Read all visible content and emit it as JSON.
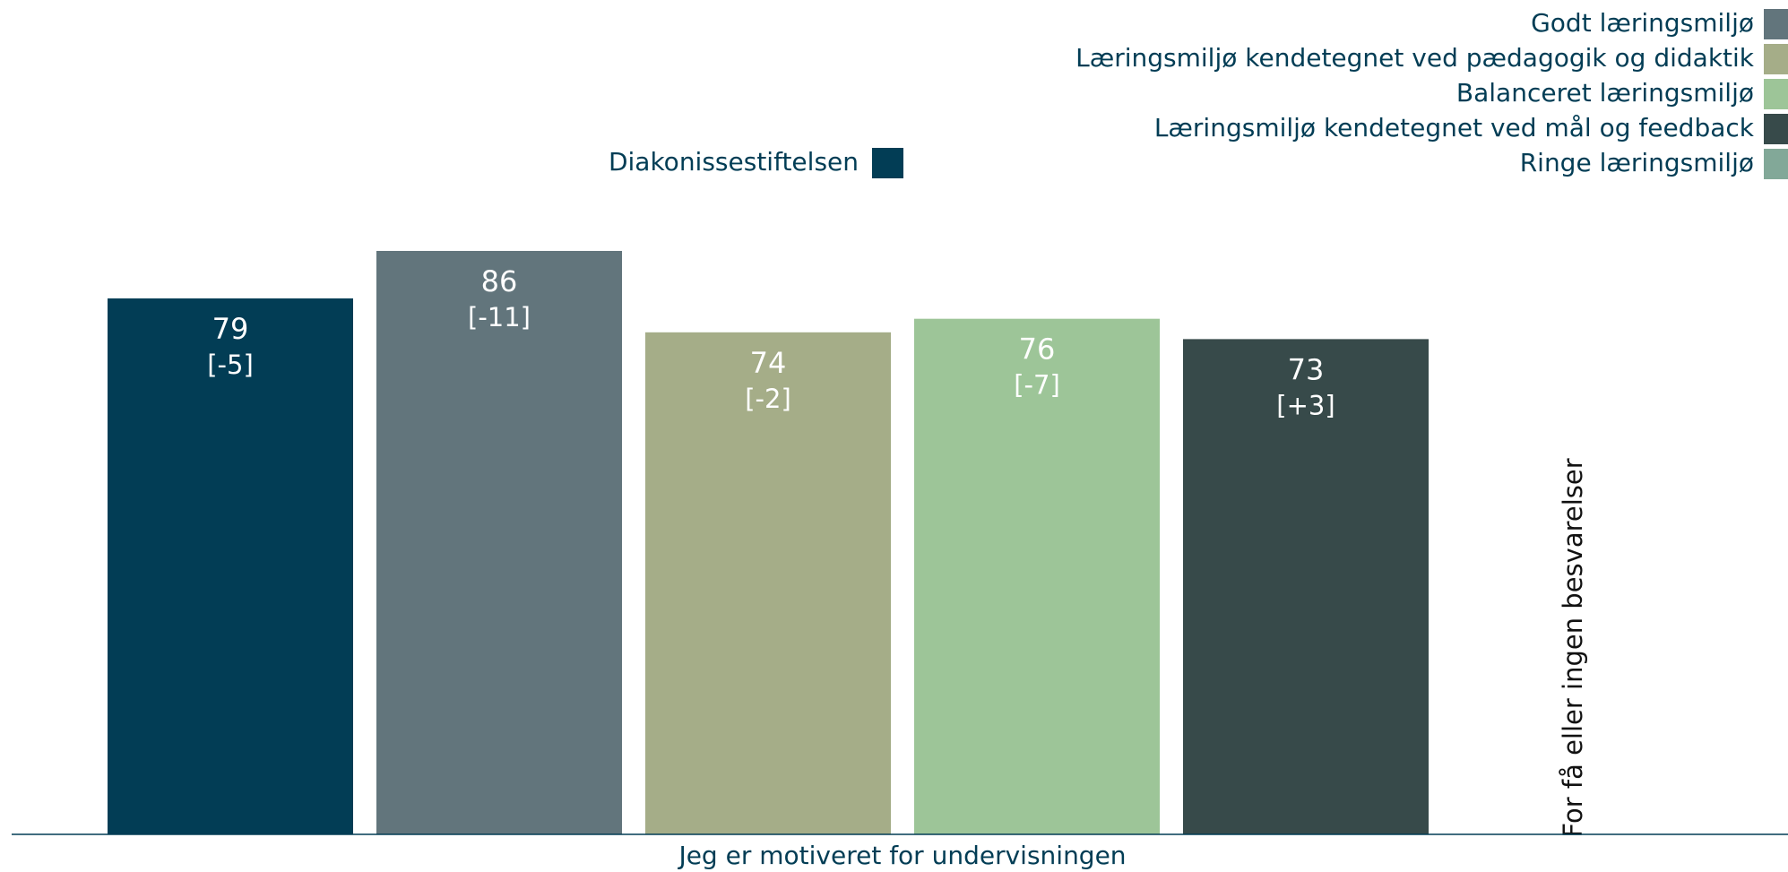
{
  "chart_data": {
    "type": "bar",
    "categories": [
      "Jeg er motiveret for undervisningen"
    ],
    "ylim": [
      0,
      100
    ],
    "series": [
      {
        "name": "Diakonissestiftelsen",
        "color": "#023d55",
        "values": [
          79
        ],
        "changes": [
          "[-5]"
        ]
      },
      {
        "name": "Godt læringsmiljø",
        "color": "#62757c",
        "values": [
          86
        ],
        "changes": [
          "[-11]"
        ]
      },
      {
        "name": "Læringsmiljø kendetegnet ved pædagogik og didaktik",
        "color": "#a5ad88",
        "values": [
          74
        ],
        "changes": [
          "[-2]"
        ]
      },
      {
        "name": "Balanceret læringsmiljø",
        "color": "#9dc598",
        "values": [
          76
        ],
        "changes": [
          "[-7]"
        ]
      },
      {
        "name": "Læringsmiljø kendetegnet ved mål og feedback",
        "color": "#374a4a",
        "values": [
          73
        ],
        "changes": [
          "[+3]"
        ]
      },
      {
        "name": "Ringe læringsmiljø",
        "color": "#82a898",
        "values": [
          null
        ],
        "changes": [
          null
        ]
      }
    ],
    "note": "For få eller ingen besvarelser"
  }
}
